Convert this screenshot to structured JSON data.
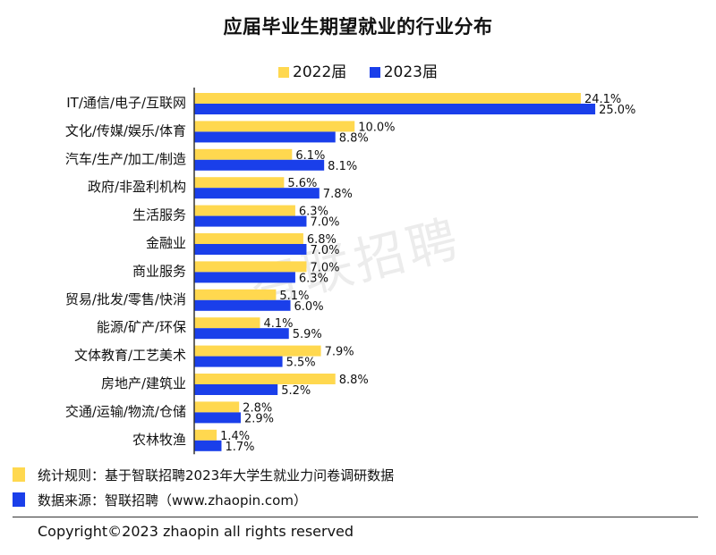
{
  "chart_data": {
    "type": "bar",
    "orientation": "horizontal",
    "title": "应届毕业生期望就业的行业分布",
    "categories": [
      "IT/通信/电子/互联网",
      "文化/传媒/娱乐/体育",
      "汽车/生产/加工/制造",
      "政府/非盈利机构",
      "生活服务",
      "金融业",
      "商业服务",
      "贸易/批发/零售/快消",
      "能源/矿产/环保",
      "文体教育/工艺美术",
      "房地产/建筑业",
      "交通/运输/物流/仓储",
      "农林牧渔"
    ],
    "series": [
      {
        "name": "2022届",
        "color": "#FFD84F",
        "values": [
          24.1,
          10.0,
          6.1,
          5.6,
          6.3,
          6.8,
          7.0,
          5.1,
          4.1,
          7.9,
          8.8,
          2.8,
          1.4
        ]
      },
      {
        "name": "2023届",
        "color": "#1A3FEA",
        "values": [
          25.0,
          8.8,
          8.1,
          7.8,
          7.0,
          7.0,
          6.3,
          6.0,
          5.9,
          5.5,
          5.2,
          2.9,
          1.7
        ]
      }
    ],
    "value_suffix": "%",
    "xlim": [
      0,
      26
    ],
    "legend_position": "top",
    "grid": false
  },
  "watermark": "智联招聘",
  "notes": [
    {
      "color": "#FFD84F",
      "text": "统计规则：基于智联招聘2023年大学生就业力问卷调研数据"
    },
    {
      "color": "#1A3FEA",
      "text": "数据来源：智联招聘（www.zhaopin.com）"
    }
  ],
  "footer": {
    "copyright": "Copyright©2023 zhaopin all rights reserved"
  }
}
